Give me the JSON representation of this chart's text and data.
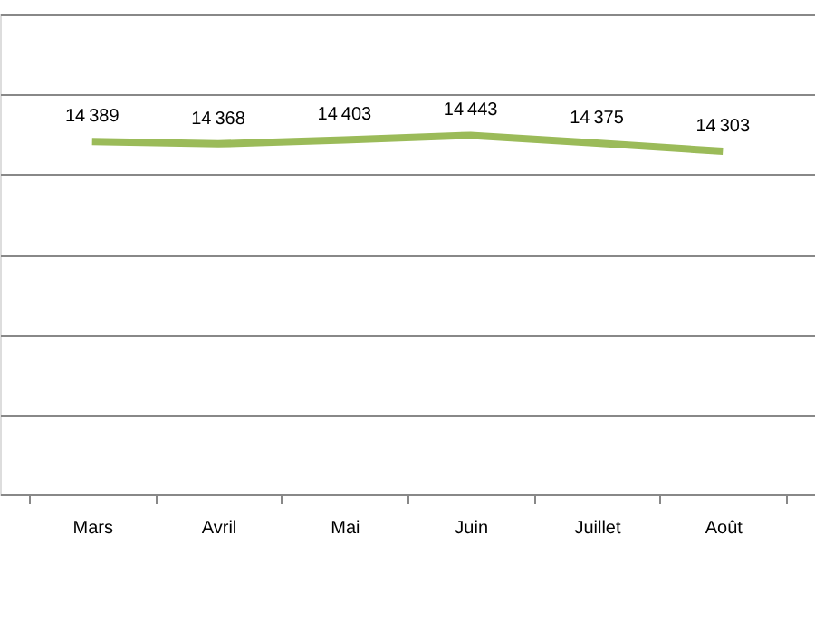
{
  "chart_data": {
    "type": "line",
    "categories": [
      "Mars",
      "Avril",
      "Mai",
      "Juin",
      "Juillet",
      "Août"
    ],
    "series": [
      {
        "color": "#9bbb59",
        "values": [
          14389,
          14368,
          14403,
          14443,
          14375,
          14303
        ]
      }
    ],
    "data_labels": true,
    "ylim": [
      11300,
      15500
    ],
    "yticks": [
      {
        "value": 11300,
        "label": null
      },
      {
        "value": 12000,
        "label": null
      },
      {
        "value": 12700,
        "label": null
      },
      {
        "value": 13400,
        "label": null
      },
      {
        "value": 14100,
        "label": null
      },
      {
        "value": 14800,
        "label": null
      },
      {
        "value": 15500,
        "label": null
      }
    ],
    "grid": "y",
    "marker": "none",
    "line_style": "solid",
    "tick_labels": "x"
  }
}
